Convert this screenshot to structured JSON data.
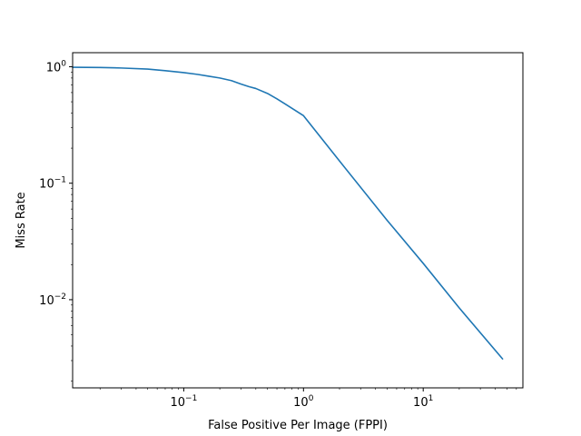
{
  "chart_data": {
    "type": "line",
    "title": "",
    "xlabel": "False Positive Per Image (FPPI)",
    "ylabel": "Miss Rate",
    "xscale": "log",
    "yscale": "log",
    "xlim": [
      0.0118,
      68
    ],
    "ylim": [
      0.00175,
      1.32
    ],
    "grid": false,
    "legend": "none",
    "line_color": "#1f77b4",
    "x_ticks": [
      {
        "value": 0.1,
        "base": "10",
        "exp": "−1"
      },
      {
        "value": 1,
        "base": "10",
        "exp": "0"
      },
      {
        "value": 10,
        "base": "10",
        "exp": "1"
      }
    ],
    "y_ticks": [
      {
        "value": 0.01,
        "base": "10",
        "exp": "−2"
      },
      {
        "value": 0.1,
        "base": "10",
        "exp": "−1"
      },
      {
        "value": 1,
        "base": "10",
        "exp": "0"
      }
    ],
    "series": [
      {
        "x": [
          0.0118,
          0.02,
          0.03,
          0.05,
          0.07,
          0.1,
          0.13,
          0.16,
          0.2,
          0.25,
          0.3,
          0.35,
          0.4,
          0.5,
          0.6,
          0.7,
          0.8,
          1.0,
          2.0,
          5.0,
          10.0,
          20.0,
          46.0
        ],
        "y": [
          0.99,
          0.985,
          0.975,
          0.955,
          0.925,
          0.89,
          0.86,
          0.83,
          0.8,
          0.76,
          0.71,
          0.675,
          0.65,
          0.59,
          0.53,
          0.48,
          0.44,
          0.38,
          0.155,
          0.048,
          0.0205,
          0.0085,
          0.0031
        ]
      }
    ]
  }
}
